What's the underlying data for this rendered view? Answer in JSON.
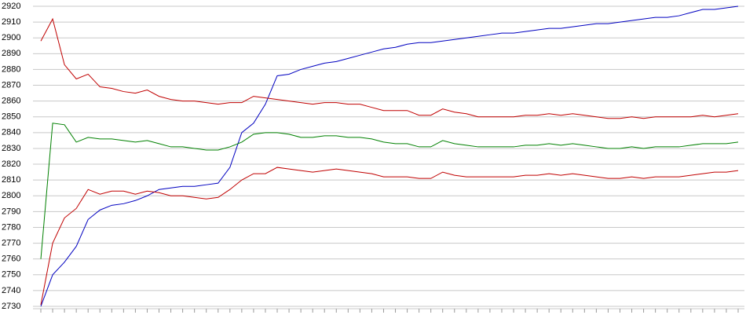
{
  "chart_data": {
    "type": "line",
    "categories": [
      null,
      null,
      null,
      null,
      null,
      null,
      null,
      null,
      null,
      null,
      null,
      null,
      null,
      null,
      null,
      null,
      null,
      null,
      null,
      null,
      null,
      null,
      null,
      null,
      null,
      null,
      null,
      null,
      null,
      null,
      null,
      null,
      null,
      null,
      null,
      null,
      null,
      null,
      null,
      null,
      null,
      null,
      null,
      null,
      null,
      null,
      null,
      null,
      null,
      null,
      null,
      null,
      null,
      null,
      null,
      null,
      null,
      null,
      null,
      null
    ],
    "series": [
      {
        "color": "#0000c0",
        "values": [
          2730,
          2750,
          2758,
          2768,
          2785,
          2791,
          2794,
          2795,
          2797,
          2800,
          2804,
          2805,
          2806,
          2806,
          2807,
          2808,
          2818,
          2840,
          2846,
          2858,
          2876,
          2877,
          2880,
          2882,
          2884,
          2885,
          2887,
          2889,
          2891,
          2893,
          2894,
          2896,
          2897,
          2897,
          2898,
          2899,
          2900,
          2901,
          2902,
          2903,
          2903,
          2904,
          2905,
          2906,
          2906,
          2907,
          2908,
          2909,
          2909,
          2910,
          2911,
          2912,
          2913,
          2913,
          2914,
          2916,
          2918,
          2918,
          2919,
          2920
        ]
      },
      {
        "color": "#c00000",
        "values": [
          2898,
          2912,
          2883,
          2874,
          2877,
          2869,
          2868,
          2866,
          2865,
          2867,
          2863,
          2861,
          2860,
          2860,
          2859,
          2858,
          2859,
          2859,
          2863,
          2862,
          2861,
          2860,
          2859,
          2858,
          2859,
          2859,
          2858,
          2858,
          2856,
          2854,
          2854,
          2854,
          2851,
          2851,
          2855,
          2853,
          2852,
          2850,
          2850,
          2850,
          2850,
          2851,
          2851,
          2852,
          2851,
          2852,
          2851,
          2850,
          2849,
          2849,
          2850,
          2849,
          2850,
          2850,
          2850,
          2850,
          2851,
          2850,
          2851,
          2852
        ]
      },
      {
        "color": "#008000",
        "values": [
          2760,
          2846,
          2845,
          2834,
          2837,
          2836,
          2836,
          2835,
          2834,
          2835,
          2833,
          2831,
          2831,
          2830,
          2829,
          2829,
          2831,
          2834,
          2839,
          2840,
          2840,
          2839,
          2837,
          2837,
          2838,
          2838,
          2837,
          2837,
          2836,
          2834,
          2833,
          2833,
          2831,
          2831,
          2835,
          2833,
          2832,
          2831,
          2831,
          2831,
          2831,
          2832,
          2832,
          2833,
          2832,
          2833,
          2832,
          2831,
          2830,
          2830,
          2831,
          2830,
          2831,
          2831,
          2831,
          2832,
          2833,
          2833,
          2833,
          2834
        ]
      },
      {
        "color": "#c00000",
        "values": [
          2731,
          2770,
          2786,
          2792,
          2804,
          2801,
          2803,
          2803,
          2801,
          2803,
          2802,
          2800,
          2800,
          2799,
          2798,
          2799,
          2804,
          2810,
          2814,
          2814,
          2818,
          2817,
          2816,
          2815,
          2816,
          2817,
          2816,
          2815,
          2814,
          2812,
          2812,
          2812,
          2811,
          2811,
          2815,
          2813,
          2812,
          2812,
          2812,
          2812,
          2812,
          2813,
          2813,
          2814,
          2813,
          2814,
          2813,
          2812,
          2811,
          2811,
          2812,
          2811,
          2812,
          2812,
          2812,
          2813,
          2814,
          2815,
          2815,
          2816
        ]
      }
    ],
    "ylim": [
      2730,
      2920
    ],
    "yticks": [
      2730,
      2740,
      2750,
      2760,
      2770,
      2780,
      2790,
      2800,
      2810,
      2820,
      2830,
      2840,
      2850,
      2860,
      2870,
      2880,
      2890,
      2900,
      2910,
      2920
    ],
    "grid": true
  }
}
